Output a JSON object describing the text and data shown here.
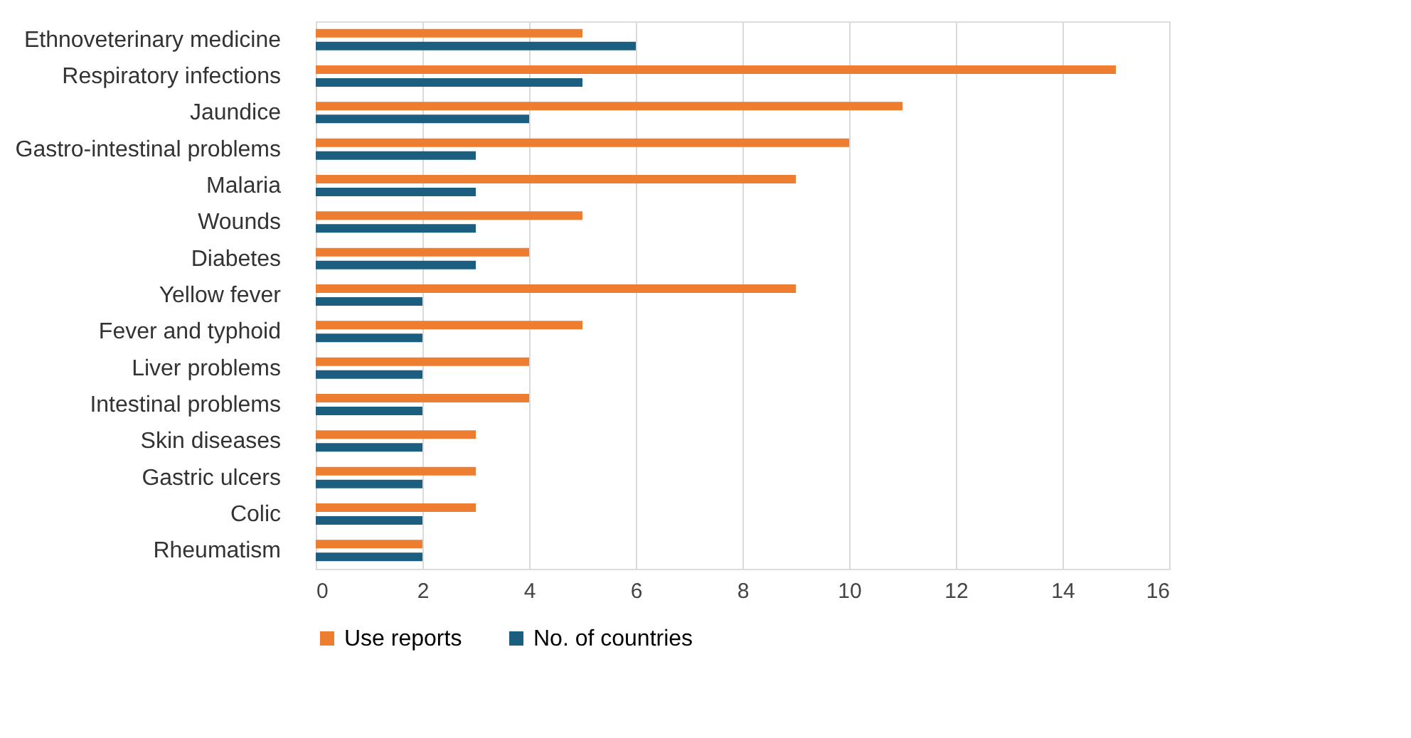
{
  "chart_data": {
    "type": "bar",
    "orientation": "horizontal",
    "categories": [
      "Ethnoveterinary medicine",
      "Respiratory infections",
      "Jaundice",
      "Gastro-intestinal problems",
      "Malaria",
      "Wounds",
      "Diabetes",
      "Yellow fever",
      "Fever and typhoid",
      "Liver problems",
      "Intestinal problems",
      "Skin diseases",
      "Gastric ulcers",
      "Colic",
      "Rheumatism"
    ],
    "series": [
      {
        "name": "Use reports",
        "color": "#ed7d31",
        "values": [
          5,
          15,
          11,
          10,
          9,
          5,
          4,
          9,
          5,
          4,
          4,
          3,
          3,
          3,
          2
        ]
      },
      {
        "name": "No. of countries",
        "color": "#1b5e80",
        "values": [
          6,
          5,
          4,
          3,
          3,
          3,
          3,
          2,
          2,
          2,
          2,
          2,
          2,
          2,
          2
        ]
      }
    ],
    "xlim": [
      0,
      16
    ],
    "xticks": [
      0,
      2,
      4,
      6,
      8,
      10,
      12,
      14,
      16
    ],
    "grid": "x",
    "legend": "bottom"
  }
}
